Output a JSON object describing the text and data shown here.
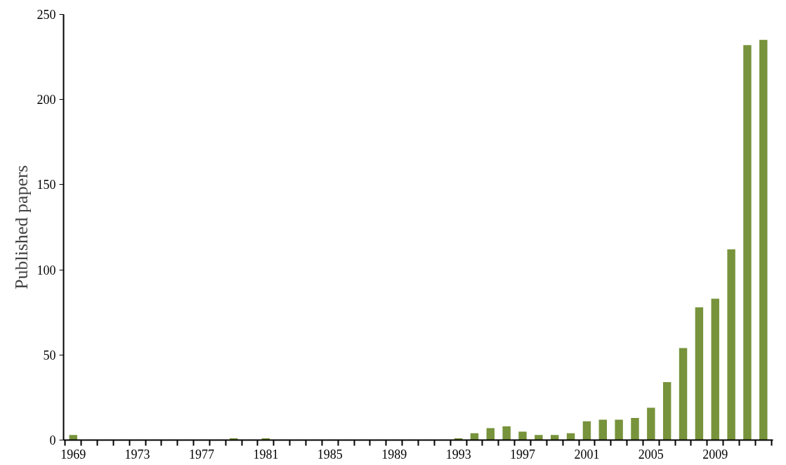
{
  "chart_data": {
    "type": "bar",
    "ylabel": "Published papers",
    "categories": [
      "1969",
      null,
      null,
      null,
      "1973",
      null,
      null,
      null,
      "1977",
      null,
      null,
      null,
      "1981",
      null,
      null,
      null,
      "1985",
      null,
      null,
      null,
      "1989",
      null,
      null,
      null,
      "1993",
      null,
      null,
      null,
      "1997",
      null,
      null,
      null,
      "2001",
      null,
      null,
      null,
      "2005",
      null,
      null,
      null,
      "2009",
      null,
      null,
      null
    ],
    "values": [
      3,
      0,
      0,
      0,
      0,
      0,
      0,
      0,
      0,
      0,
      1,
      0,
      1,
      0,
      0,
      0,
      0,
      0,
      0,
      0,
      0,
      0,
      0,
      0,
      1,
      4,
      7,
      8,
      5,
      3,
      3,
      4,
      11,
      12,
      12,
      13,
      19,
      34,
      54,
      78,
      83,
      112,
      232,
      235
    ],
    "color": "#77933c",
    "ylim": [
      0,
      250
    ],
    "yticks": [
      0,
      50,
      100,
      150,
      200,
      250
    ],
    "grid": false
  }
}
